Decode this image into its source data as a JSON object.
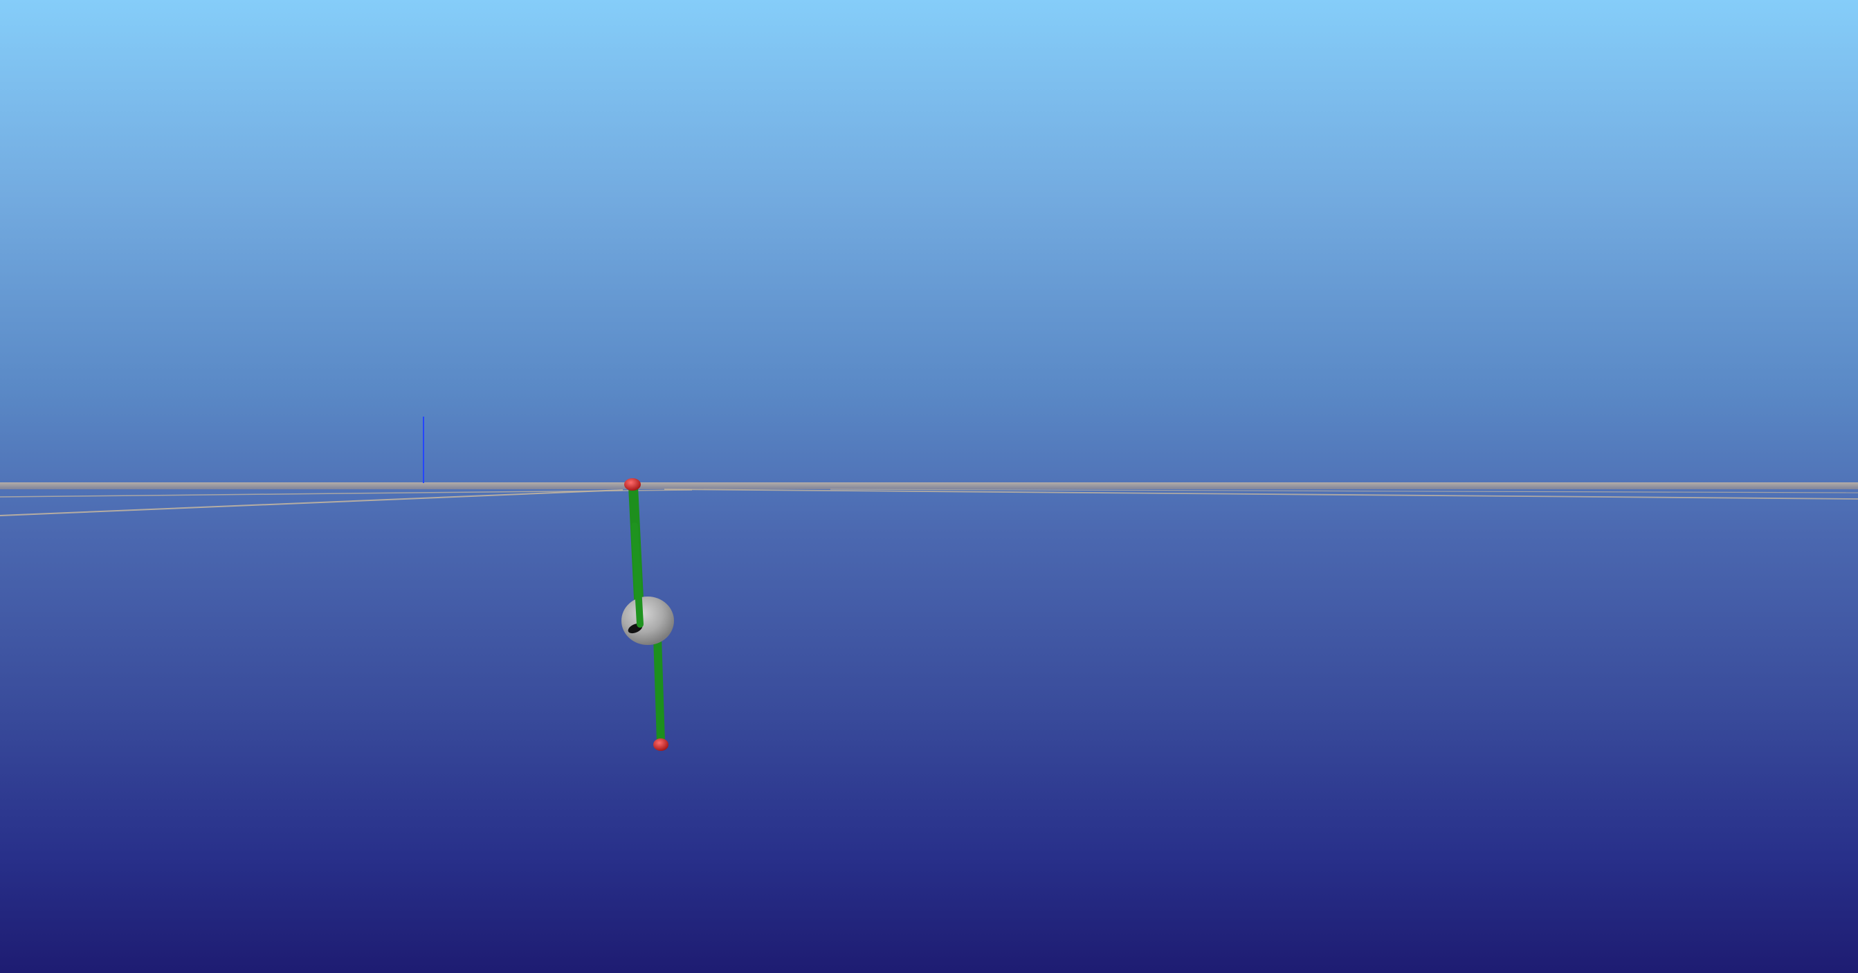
{
  "viewport": {
    "background_top": "#85cdf9",
    "background_bottom": "#1e1c72"
  },
  "scene": {
    "ground_plane_color": "#9c9ca8",
    "grid_line_color": "#c7b7a0",
    "axis_color": "#2546ff",
    "rod_color": "#1d8f1d",
    "joint_color": "#cc1f1f",
    "bob_color": "#b8b8b8",
    "hole_color": "#111111"
  }
}
